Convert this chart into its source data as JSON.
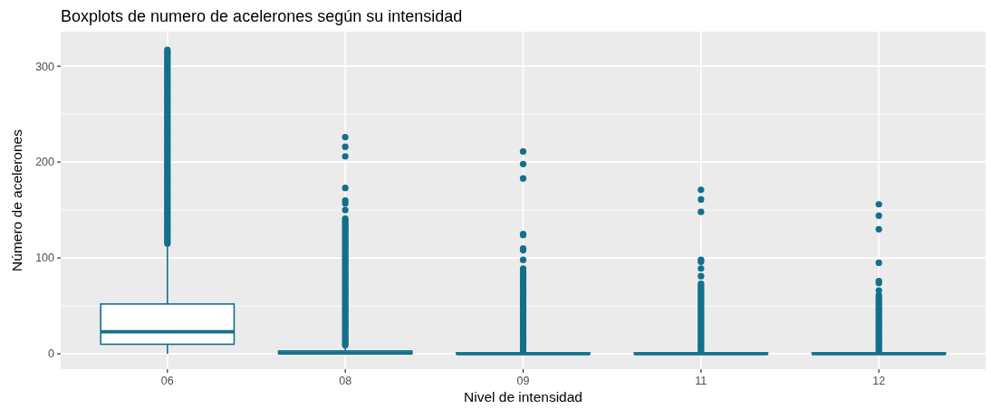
{
  "chart_data": {
    "type": "box",
    "title": "Boxplots de numero de acelerones según su intensidad",
    "xlabel": "Nivel de intensidad",
    "ylabel": "Número de acelerones",
    "categories": [
      "06",
      "08",
      "09",
      "11",
      "12"
    ],
    "color": "#13708b",
    "ylim": [
      -16,
      336
    ],
    "yticks": [
      0,
      100,
      200,
      300
    ],
    "grid": true,
    "boxes": [
      {
        "low": 0,
        "q1": 10,
        "median": 23,
        "q3": 52,
        "high": 113,
        "outliers": [
          115,
          117,
          119,
          121,
          123,
          125,
          127,
          129,
          131,
          133,
          135,
          137,
          139,
          141,
          143,
          145,
          147,
          149,
          151,
          153,
          155,
          157,
          159,
          161,
          163,
          165,
          167,
          169,
          171,
          173,
          175,
          177,
          179,
          181,
          183,
          185,
          187,
          189,
          191,
          193,
          195,
          197,
          199,
          201,
          203,
          205,
          207,
          209,
          211,
          213,
          215,
          217,
          219,
          221,
          223,
          225,
          227,
          229,
          231,
          233,
          235,
          237,
          239,
          241,
          243,
          245,
          247,
          249,
          251,
          253,
          255,
          257,
          259,
          261,
          263,
          265,
          267,
          269,
          271,
          273,
          275,
          277,
          279,
          281,
          283,
          285,
          287,
          289,
          291,
          293,
          295,
          297,
          299,
          301,
          303,
          305,
          307,
          309,
          311,
          313,
          315,
          317
        ]
      },
      {
        "low": 0,
        "q1": 0,
        "median": 1,
        "q3": 3,
        "high": 7,
        "outliers": [
          9,
          11,
          13,
          15,
          17,
          19,
          21,
          23,
          25,
          27,
          29,
          31,
          33,
          35,
          37,
          39,
          41,
          43,
          45,
          47,
          49,
          51,
          53,
          55,
          57,
          59,
          61,
          63,
          65,
          67,
          69,
          71,
          73,
          75,
          77,
          79,
          81,
          83,
          85,
          87,
          89,
          91,
          93,
          95,
          97,
          99,
          101,
          103,
          105,
          107,
          109,
          111,
          113,
          115,
          117,
          119,
          121,
          123,
          125,
          127,
          129,
          131,
          133,
          135,
          137,
          139,
          141,
          150,
          157,
          160,
          173,
          206,
          216,
          226
        ]
      },
      {
        "low": 0,
        "q1": 0,
        "median": 0,
        "q3": 1,
        "high": 2,
        "outliers": [
          3,
          5,
          7,
          9,
          11,
          13,
          15,
          17,
          19,
          21,
          23,
          25,
          27,
          29,
          31,
          33,
          35,
          37,
          39,
          41,
          43,
          45,
          47,
          49,
          51,
          53,
          55,
          57,
          59,
          61,
          63,
          65,
          67,
          69,
          71,
          73,
          75,
          77,
          79,
          81,
          83,
          85,
          87,
          89,
          98,
          108,
          110,
          124,
          125,
          183,
          198,
          211
        ]
      },
      {
        "low": 0,
        "q1": 0,
        "median": 0,
        "q3": 1,
        "high": 2,
        "outliers": [
          3,
          5,
          7,
          9,
          11,
          13,
          15,
          17,
          19,
          21,
          23,
          25,
          27,
          29,
          31,
          33,
          35,
          37,
          39,
          41,
          43,
          45,
          47,
          49,
          51,
          53,
          55,
          57,
          59,
          61,
          63,
          65,
          67,
          69,
          71,
          73,
          81,
          89,
          96,
          98,
          148,
          161,
          171
        ]
      },
      {
        "low": 0,
        "q1": 0,
        "median": 0,
        "q3": 1,
        "high": 2,
        "outliers": [
          3,
          5,
          7,
          9,
          11,
          13,
          15,
          17,
          19,
          21,
          23,
          25,
          27,
          29,
          31,
          33,
          35,
          37,
          39,
          41,
          43,
          45,
          47,
          49,
          51,
          53,
          55,
          57,
          59,
          61,
          66,
          74,
          76,
          95,
          130,
          144,
          156
        ]
      }
    ]
  }
}
